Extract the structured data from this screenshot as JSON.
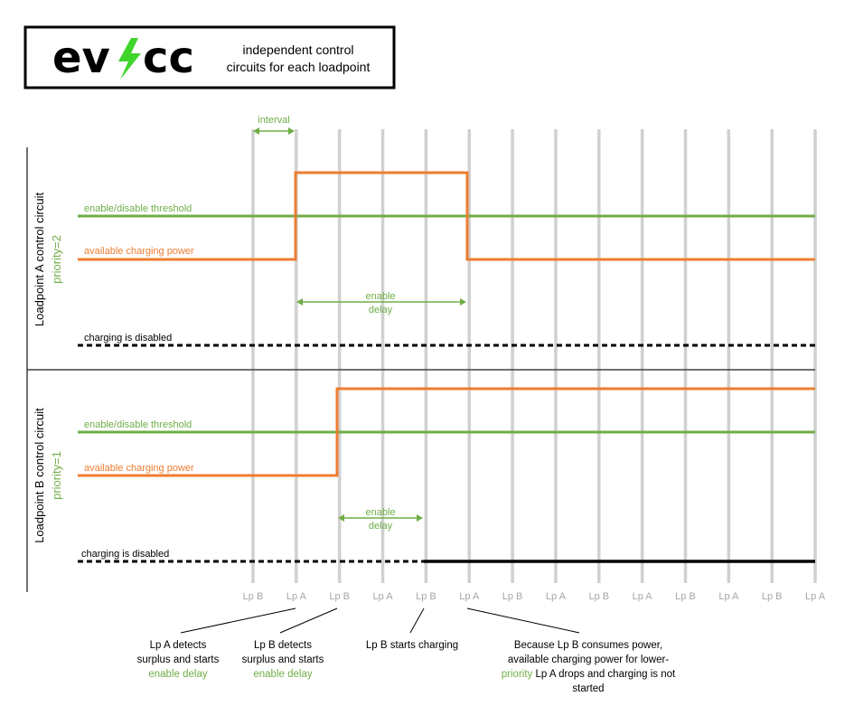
{
  "header": {
    "logo_left": "ev",
    "logo_right": "cc",
    "title_line1": "independent control",
    "title_line2": "circuits for each loadpoint"
  },
  "interval_label": "interval",
  "panel_a": {
    "title": "Loadpoint A control circuit",
    "priority": "priority=2",
    "threshold_label": "enable/disable threshold",
    "power_label": "available charging power",
    "delay_line1": "enable",
    "delay_line2": "delay",
    "disabled_label": "charging is disabled"
  },
  "panel_b": {
    "title": "Loadpoint B control circuit",
    "priority": "priority=1",
    "threshold_label": "enable/disable threshold",
    "power_label": "available charging power",
    "delay_line1": "enable",
    "delay_line2": "delay",
    "disabled_label": "charging is disabled"
  },
  "ticks": [
    "Lp B",
    "Lp A",
    "Lp B",
    "Lp A",
    "Lp B",
    "Lp A",
    "Lp B",
    "Lp A",
    "Lp B",
    "Lp A",
    "Lp B",
    "Lp A",
    "Lp B",
    "Lp A"
  ],
  "annotations": [
    {
      "lines": [
        [
          "Lp A detects",
          ""
        ],
        [
          "surplus and starts",
          ""
        ],
        [
          "",
          "enable delay"
        ]
      ]
    },
    {
      "lines": [
        [
          "Lp B detects",
          ""
        ],
        [
          "surplus and starts",
          ""
        ],
        [
          "",
          "enable delay"
        ]
      ]
    },
    {
      "lines": [
        [
          "Lp B starts charging",
          ""
        ]
      ]
    },
    {
      "lines": [
        [
          "Because Lp B consumes power,",
          ""
        ],
        [
          "available charging power for lower-",
          ""
        ],
        [
          "",
          "priority"
        ],
        [
          "Lp A drops and charging is not",
          ""
        ],
        [
          "started",
          ""
        ]
      ]
    }
  ],
  "colors": {
    "green": "#70ad47",
    "orange": "#ed7d31",
    "gridline": "#d0d0d0",
    "tick_label": "#a6a6a6",
    "black": "#000000",
    "bolt": "#3fd52b"
  }
}
